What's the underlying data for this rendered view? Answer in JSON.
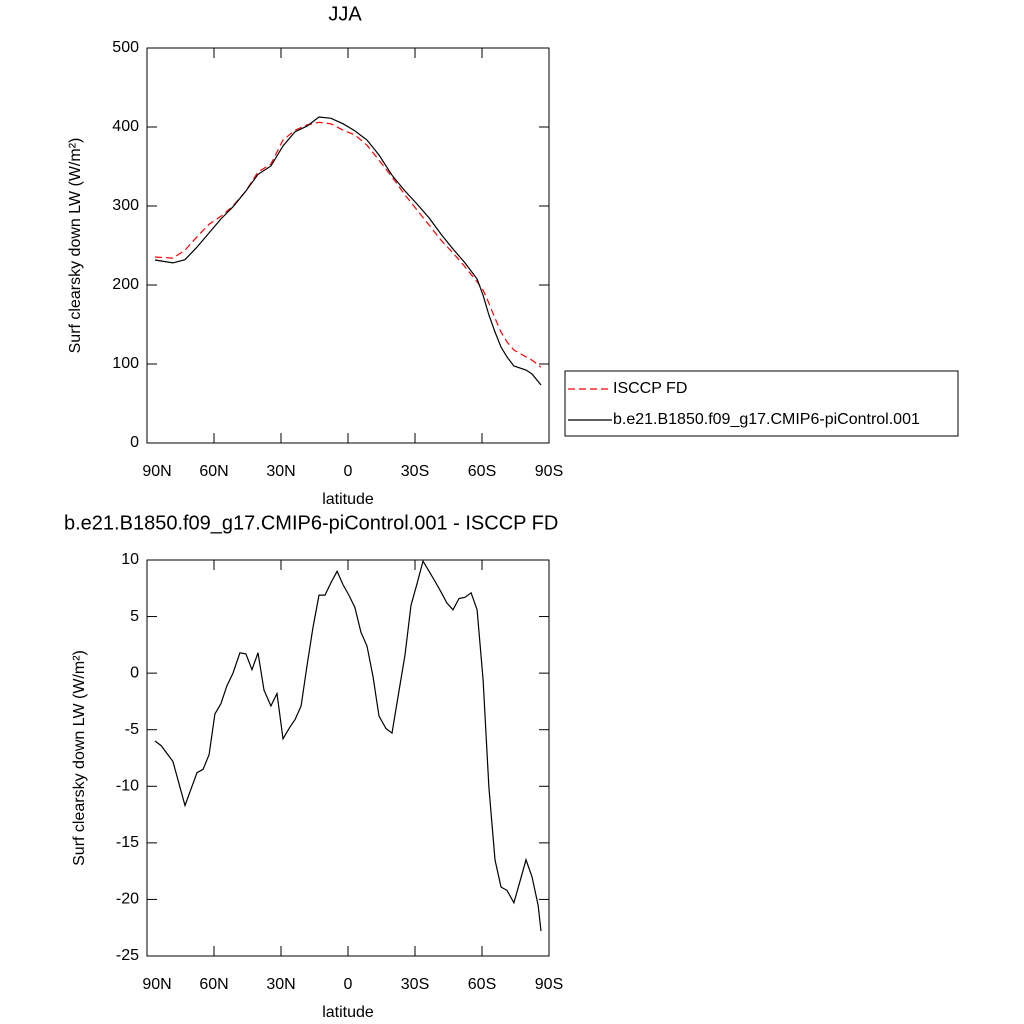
{
  "chart_data": [
    {
      "type": "line",
      "title": "JJA",
      "xlabel": "latitude",
      "ylabel": "Surf clearsky down LW (W/m²)",
      "x": [
        86.4,
        78.4,
        73.0,
        67.6,
        62.2,
        56.9,
        51.5,
        45.7,
        40.3,
        34.5,
        29.1,
        23.7,
        18.4,
        13.0,
        7.6,
        2.2,
        -3.1,
        -8.5,
        -13.9,
        -19.7,
        -25.5,
        -30.9,
        -36.3,
        -41.6,
        -47.0,
        -52.4,
        -57.8,
        -60.5,
        -63.1,
        -65.8,
        -68.5,
        -71.2,
        -74.3,
        -79.7,
        -82.4,
        -86.4
      ],
      "series": [
        {
          "name": "ISCCP FD",
          "color": "#ff0000",
          "dash": "dashed",
          "values": [
            235.4,
            234,
            244,
            261,
            277,
            287,
            300,
            319,
            343,
            353,
            383.5,
            396,
            402.5,
            406,
            404,
            396,
            390,
            377,
            358,
            337,
            314,
            295,
            276,
            257,
            240.5,
            223,
            204,
            193.7,
            177,
            158,
            140.5,
            128,
            117.7,
            109,
            105,
            96
          ]
        },
        {
          "name": "b.e21.B1850.f09_g17.CMIP6-piControl.001",
          "color": "#000000",
          "dash": "solid",
          "values": [
            231.6,
            228,
            232,
            248,
            266,
            283.5,
            299,
            319,
            340,
            350.6,
            376,
            394,
            401,
            412.7,
            411,
            404,
            395,
            383.5,
            364.6,
            339,
            319,
            302.5,
            285,
            264.6,
            245.6,
            228,
            207.6,
            187,
            162,
            140.5,
            121.5,
            109,
            97.5,
            92.4,
            87.3,
            73.4
          ]
        }
      ],
      "xlim": [
        90,
        -90
      ],
      "xticks": [
        {
          "value": 90,
          "label": "90N"
        },
        {
          "value": 60,
          "label": "60N"
        },
        {
          "value": 30,
          "label": "30N"
        },
        0,
        {
          "value": -30,
          "label": "30S"
        },
        {
          "value": -60,
          "label": "60S"
        },
        {
          "value": -90,
          "label": "90S"
        }
      ],
      "ylim": [
        0,
        500
      ],
      "yticks": [
        0,
        100,
        200,
        300,
        400,
        500
      ],
      "legend": "right"
    },
    {
      "type": "line",
      "title": "b.e21.B1850.f09_g17.CMIP6-piControl.001 - ISCCP FD",
      "xlabel": "latitude",
      "ylabel": "Surf clearsky down LW (W/m²)",
      "x": [
        86.4,
        83.7,
        78.4,
        73.0,
        67.6,
        64.9,
        62.2,
        59.6,
        56.9,
        54.2,
        51.5,
        48.4,
        45.7,
        43.0,
        40.3,
        37.6,
        34.5,
        31.8,
        29.1,
        26.4,
        23.7,
        21.0,
        18.4,
        15.7,
        13.0,
        10.3,
        7.6,
        4.9,
        2.2,
        -0.4,
        -3.1,
        -5.8,
        -8.5,
        -11.2,
        -13.9,
        -17.0,
        -19.7,
        -22.4,
        -25.5,
        -28.2,
        -30.9,
        -33.6,
        -36.3,
        -39.0,
        -41.6,
        -44.3,
        -47.0,
        -49.7,
        -52.4,
        -55.1,
        -57.8,
        -60.5,
        -63.1,
        -65.8,
        -68.5,
        -71.2,
        -74.3,
        -77.0,
        -79.7,
        -82.4,
        -85.1,
        -86.4
      ],
      "color": "#000000",
      "values": [
        -6.0,
        -6.4,
        -7.8,
        -11.7,
        -8.8,
        -8.5,
        -7.2,
        -3.6,
        -2.7,
        -1.1,
        0,
        1.8,
        1.7,
        0.3,
        1.8,
        -1.5,
        -2.9,
        -1.8,
        -5.8,
        -4.9,
        -4.1,
        -2.9,
        0.6,
        4.0,
        6.9,
        6.9,
        8.0,
        9.0,
        7.8,
        6.9,
        5.8,
        3.6,
        2.4,
        -0.3,
        -3.8,
        -4.9,
        -5.3,
        -2.1,
        1.6,
        6.0,
        7.9,
        9.9,
        9.0,
        8.1,
        7.2,
        6.2,
        5.6,
        6.6,
        6.7,
        7.1,
        5.6,
        -0.6,
        -10.1,
        -16.5,
        -18.9,
        -19.2,
        -20.3,
        -18.4,
        -16.5,
        -18.0,
        -20.5,
        -22.8
      ],
      "xlim": [
        90,
        -90
      ],
      "xticks": [
        {
          "value": 90,
          "label": "90N"
        },
        {
          "value": 60,
          "label": "60N"
        },
        {
          "value": 30,
          "label": "30N"
        },
        0,
        {
          "value": -30,
          "label": "30S"
        },
        {
          "value": -60,
          "label": "60S"
        },
        {
          "value": -90,
          "label": "90S"
        }
      ],
      "ylim": [
        -25,
        10
      ],
      "yticks": [
        -25,
        -20,
        -15,
        -10,
        -5,
        0,
        5,
        10
      ]
    }
  ]
}
